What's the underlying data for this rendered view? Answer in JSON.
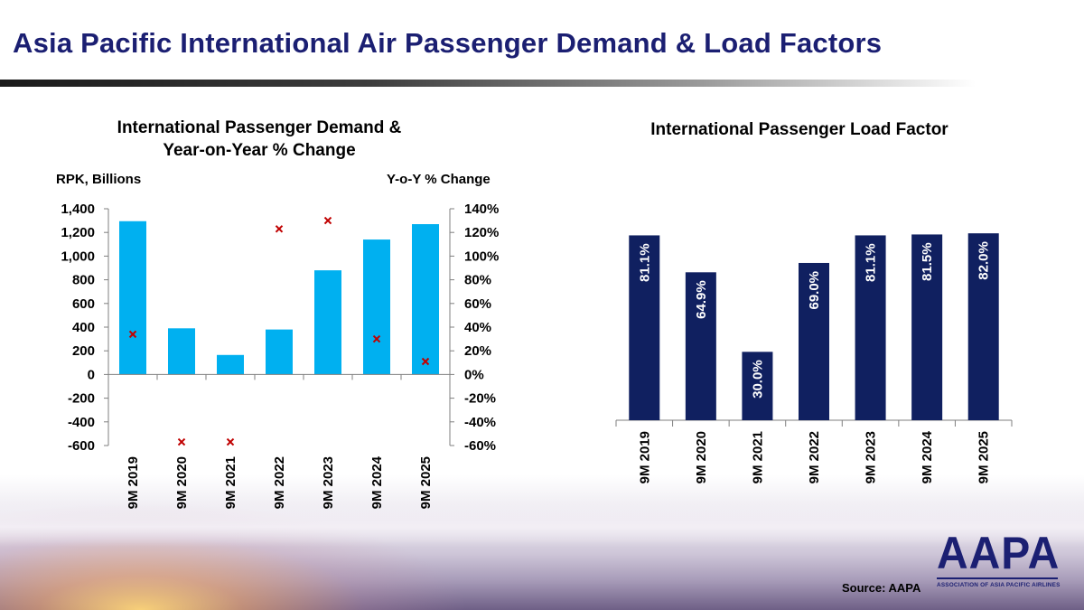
{
  "title": "Asia Pacific International Air Passenger Demand & Load Factors",
  "source": "Source: AAPA",
  "logo": {
    "name": "AAPA",
    "subtitle": "ASSOCIATION OF ASIA PACIFIC AIRLINES"
  },
  "colors": {
    "title": "#1b1f72",
    "bar_light": "#00b0f0",
    "bar_dark": "#102060",
    "marker": "#c00000"
  },
  "chart_data": [
    {
      "type": "bar",
      "title": "International Passenger Demand & Year-on-Year % Change",
      "title_lines": [
        "International Passenger Demand &",
        "Year-on-Year % Change"
      ],
      "ylabel": "RPK, Billions",
      "y2label": "Y-o-Y % Change",
      "categories": [
        "9M 2019",
        "9M 2020",
        "9M 2021",
        "9M 2022",
        "9M 2023",
        "9M 2024",
        "9M 2025"
      ],
      "ylim": [
        -600,
        1400
      ],
      "y2lim": [
        -60,
        140
      ],
      "yticks": [
        1400,
        1200,
        1000,
        800,
        600,
        400,
        200,
        0,
        -200,
        -400,
        -600
      ],
      "yticklabels": [
        "1,400",
        "1,200",
        "1,000",
        "800",
        "600",
        "400",
        "200",
        "0",
        "-200",
        "-400",
        "-600"
      ],
      "y2ticks": [
        140,
        120,
        100,
        80,
        60,
        40,
        20,
        0,
        -20,
        -40,
        -60
      ],
      "y2ticklabels": [
        "140%",
        "120%",
        "100%",
        "80%",
        "60%",
        "40%",
        "20%",
        "0%",
        "-20%",
        "-40%",
        "-60%"
      ],
      "series": [
        {
          "name": "RPK, Billions",
          "kind": "bar",
          "values": [
            1295,
            390,
            165,
            380,
            880,
            1140,
            1270
          ]
        },
        {
          "name": "Y-o-Y % Change",
          "kind": "marker",
          "axis": "right",
          "values": [
            34,
            -57,
            -57,
            123,
            130,
            30,
            11
          ]
        }
      ]
    },
    {
      "type": "bar",
      "title": "International Passenger Load Factor",
      "categories": [
        "9M 2019",
        "9M 2020",
        "9M 2021",
        "9M 2022",
        "9M 2023",
        "9M 2024",
        "9M 2025"
      ],
      "ylim": [
        0,
        90
      ],
      "series": [
        {
          "name": "Load Factor",
          "values": [
            81.1,
            64.9,
            30.0,
            69.0,
            81.1,
            81.5,
            82.0
          ],
          "labels": [
            "81.1%",
            "64.9%",
            "30.0%",
            "69.0%",
            "81.1%",
            "81.5%",
            "82.0%"
          ]
        }
      ]
    }
  ]
}
